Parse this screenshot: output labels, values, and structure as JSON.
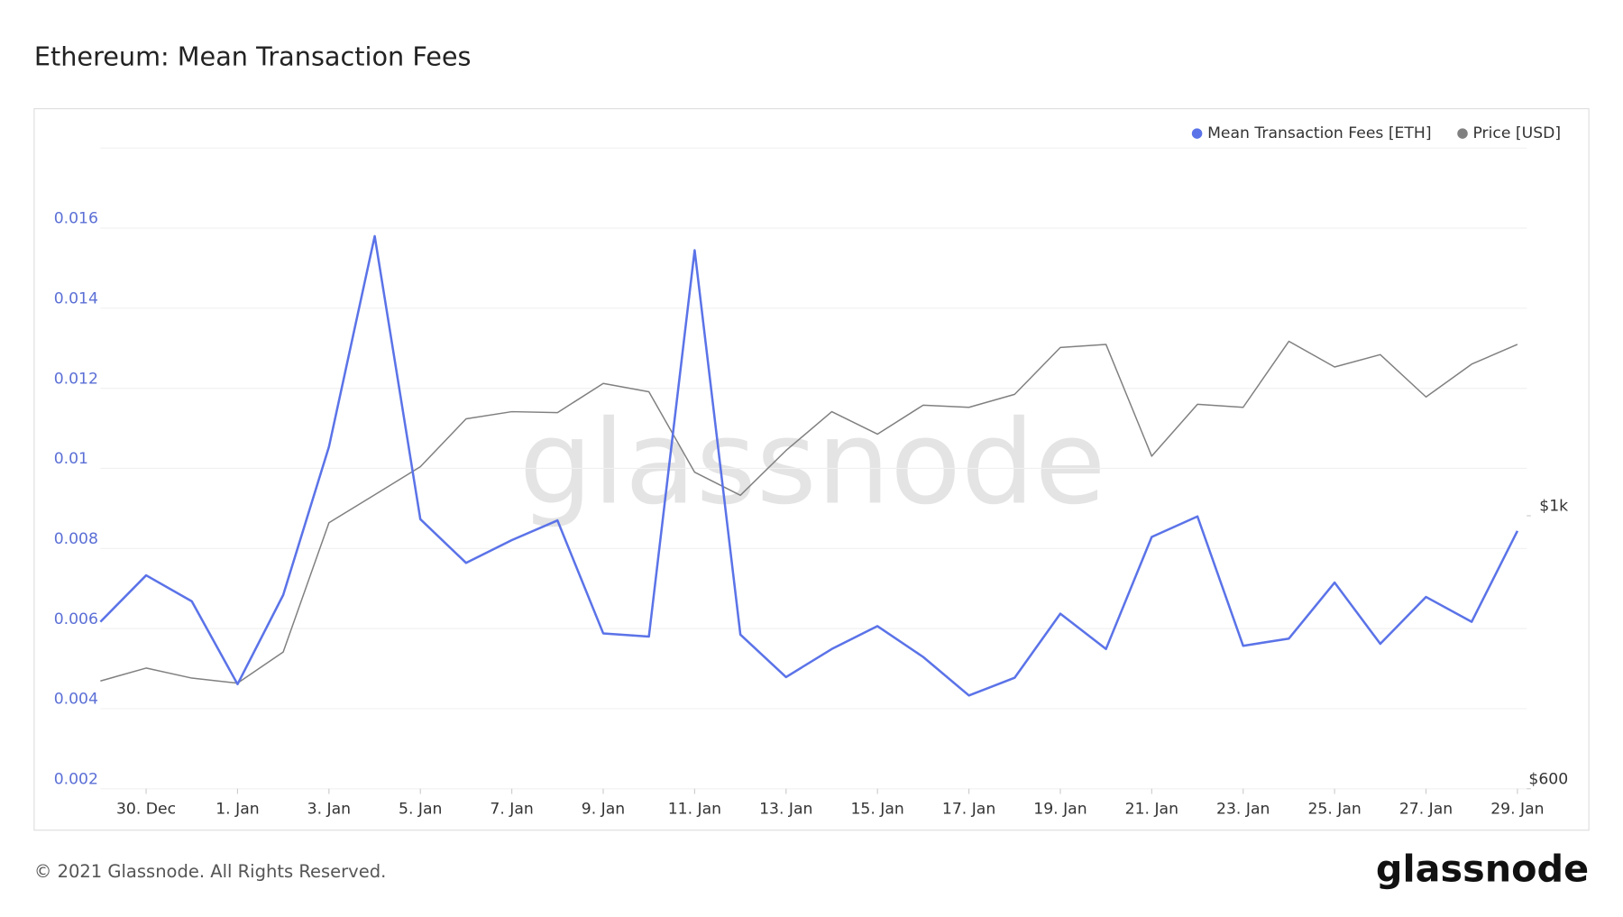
{
  "chart_data": {
    "type": "line",
    "title": "Ethereum: Mean Transaction Fees",
    "watermark": "glassnode",
    "footer_text": "© 2021 Glassnode. All Rights Reserved.",
    "logo_text": "glassnode",
    "categories": [
      null,
      "30. Dec",
      null,
      "1. Jan",
      null,
      "3. Jan",
      null,
      "5. Jan",
      null,
      "7. Jan",
      null,
      "9. Jan",
      null,
      "11. Jan",
      null,
      "13. Jan",
      null,
      "15. Jan",
      null,
      "17. Jan",
      null,
      "19. Jan",
      null,
      "21. Jan",
      null,
      "23. Jan",
      null,
      "25. Jan",
      null,
      "27. Jan",
      null,
      "29. Jan"
    ],
    "series": [
      {
        "name": "Mean Transaction Fees [ETH]",
        "color": "#5b73e8",
        "axis": "y",
        "values": [
          0.00617,
          0.00733,
          0.00668,
          0.00461,
          0.00684,
          0.01054,
          0.0158,
          0.00873,
          0.00764,
          0.00821,
          0.0087,
          0.00588,
          0.0058,
          0.01545,
          0.00585,
          0.00479,
          0.00549,
          0.00606,
          0.00529,
          0.00433,
          0.00477,
          0.00637,
          0.00549,
          0.00829,
          0.0088,
          0.00557,
          0.00575,
          0.00715,
          0.00562,
          0.00679,
          0.00617,
          0.00844
        ]
      },
      {
        "name": "Price [USD]",
        "color": "#808080",
        "axis": "y2",
        "values": [
          734,
          752,
          738,
          731,
          775,
          987,
          1040,
          1096,
          1199,
          1215,
          1213,
          1281,
          1261,
          1085,
          1039,
          1130,
          1215,
          1165,
          1230,
          1225,
          1255,
          1370,
          1378,
          1118,
          1232,
          1225,
          1386,
          1321,
          1352,
          1249,
          1328,
          1378
        ]
      }
    ],
    "ylim": [
      0.002,
      0.018
    ],
    "yticks": [
      0.002,
      0.004,
      0.006,
      0.008,
      0.01,
      0.012,
      0.014,
      0.016
    ],
    "y2lim": [
      600,
      1990
    ],
    "y2log": true,
    "y2ticks": [
      {
        "value": 600,
        "label": "$600"
      },
      {
        "value": 1000,
        "label": "$1k"
      }
    ],
    "grid": true,
    "legend": "top-right"
  }
}
